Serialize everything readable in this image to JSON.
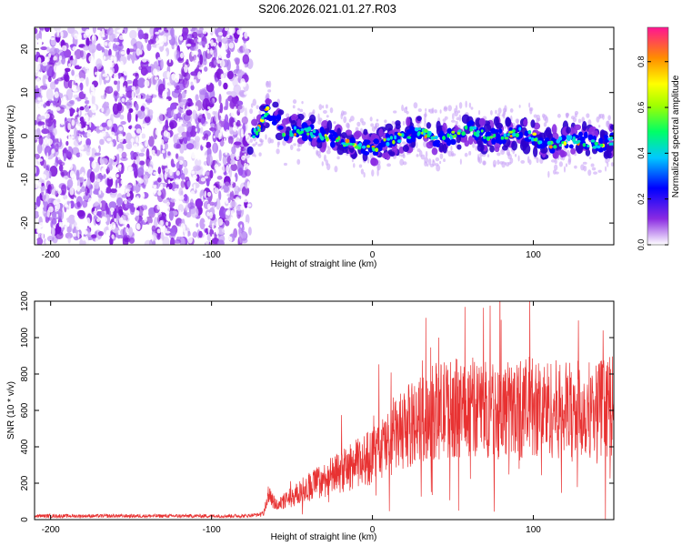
{
  "title": "S206.2026.021.01.27.R03",
  "chart_data": [
    {
      "type": "heatmap",
      "name": "spectrogram",
      "xlabel": "Height of straight line (km)",
      "ylabel": "Frequency (Hz)",
      "xlim": [
        -210,
        150
      ],
      "ylim": [
        -25,
        25
      ],
      "xticks": [
        -200,
        -100,
        0,
        100
      ],
      "yticks": [
        -20,
        -10,
        0,
        10,
        20
      ],
      "noise_region_x": [
        -210,
        -76
      ],
      "signal_start_x": -76,
      "ridge": {
        "x": [
          -76,
          -70,
          -66,
          -62,
          -58,
          -54,
          -50,
          -40,
          -30,
          -20,
          -10,
          0,
          10,
          20,
          30,
          40,
          50,
          60,
          70,
          80,
          90,
          100,
          110,
          120,
          130,
          140,
          150
        ],
        "y": [
          0,
          2,
          6,
          5,
          3,
          0,
          1,
          1,
          0,
          -1,
          -2,
          -3,
          -1,
          0,
          1,
          -1,
          0,
          2,
          0,
          0,
          1,
          0,
          -2,
          -1,
          -1,
          -2,
          -1
        ]
      },
      "colorbar": {
        "label": "Normalized spectral amplitude",
        "range": [
          0,
          0.95
        ],
        "ticks": [
          "0.0",
          "0.2",
          "0.4",
          "0.6",
          "0.8"
        ],
        "tick_values": [
          0,
          0.2,
          0.4,
          0.6,
          0.8
        ]
      }
    },
    {
      "type": "line",
      "name": "snr",
      "xlabel": "Height of straight line (km)",
      "ylabel": "SNR (10 * v/v)",
      "xlim": [
        -210,
        150
      ],
      "ylim": [
        0,
        1200
      ],
      "xticks": [
        -200,
        -100,
        0,
        100
      ],
      "yticks": [
        0,
        200,
        400,
        600,
        800,
        1000,
        1200
      ],
      "color": "#e83232",
      "trend": {
        "x": [
          -210,
          -80,
          -68,
          -64,
          -60,
          -50,
          -40,
          -20,
          0,
          10,
          20,
          40,
          60,
          80,
          100,
          120,
          150
        ],
        "y": [
          20,
          20,
          30,
          150,
          80,
          120,
          180,
          260,
          350,
          420,
          500,
          600,
          620,
          600,
          620,
          600,
          620
        ]
      }
    }
  ]
}
